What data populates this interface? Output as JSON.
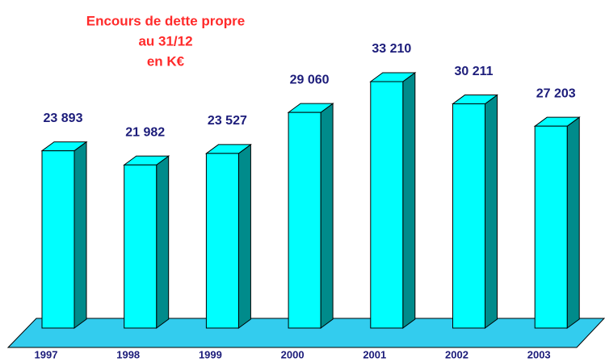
{
  "chart_data": {
    "type": "bar3d",
    "title": [
      "Encours de dette propre",
      "au 31/12",
      "en K€"
    ],
    "categories": [
      "1997",
      "1998",
      "1999",
      "2000",
      "2001",
      "2002",
      "2003"
    ],
    "values": [
      23893,
      21982,
      23527,
      29060,
      33210,
      30211,
      27203
    ],
    "value_labels": [
      "23 893",
      "21 982",
      "23 527",
      "29 060",
      "33 210",
      "30 211",
      "27 203"
    ],
    "color": "#00ffff",
    "side_color": "#008b8b",
    "floor_color": "#33ccee",
    "title_color": "#ff2a2a",
    "label_color": "#1c1c7a"
  }
}
